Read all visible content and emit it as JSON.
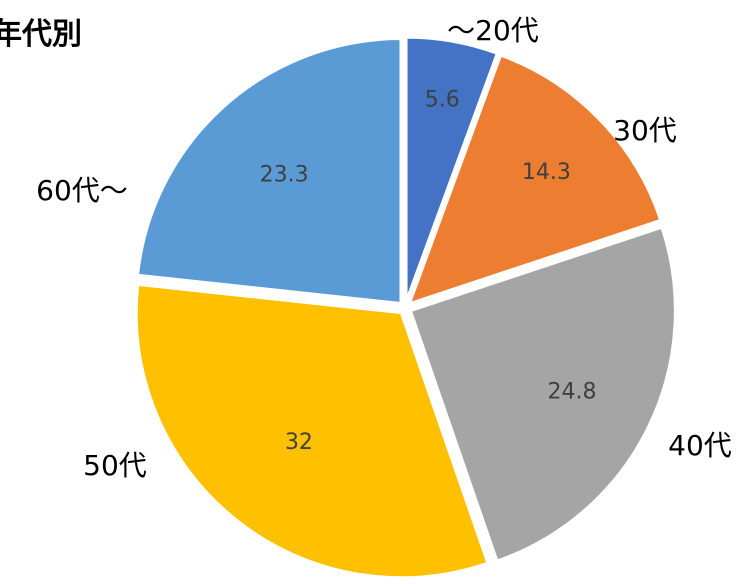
{
  "chart_data": {
    "type": "pie",
    "title": "年代別",
    "categories": [
      "～20代",
      "30代",
      "40代",
      "50代",
      "60代～"
    ],
    "values": [
      5.6,
      14.3,
      24.8,
      32,
      23.3
    ],
    "value_labels": [
      "5.6",
      "14.3",
      "24.8",
      "32",
      "23.3"
    ],
    "colors": [
      "#4472C4",
      "#ED7D31",
      "#A5A5A5",
      "#FFC000",
      "#5B9BD5"
    ],
    "start_angle": "12 o'clock",
    "direction": "clockwise",
    "legend": "none",
    "exploded": true
  }
}
